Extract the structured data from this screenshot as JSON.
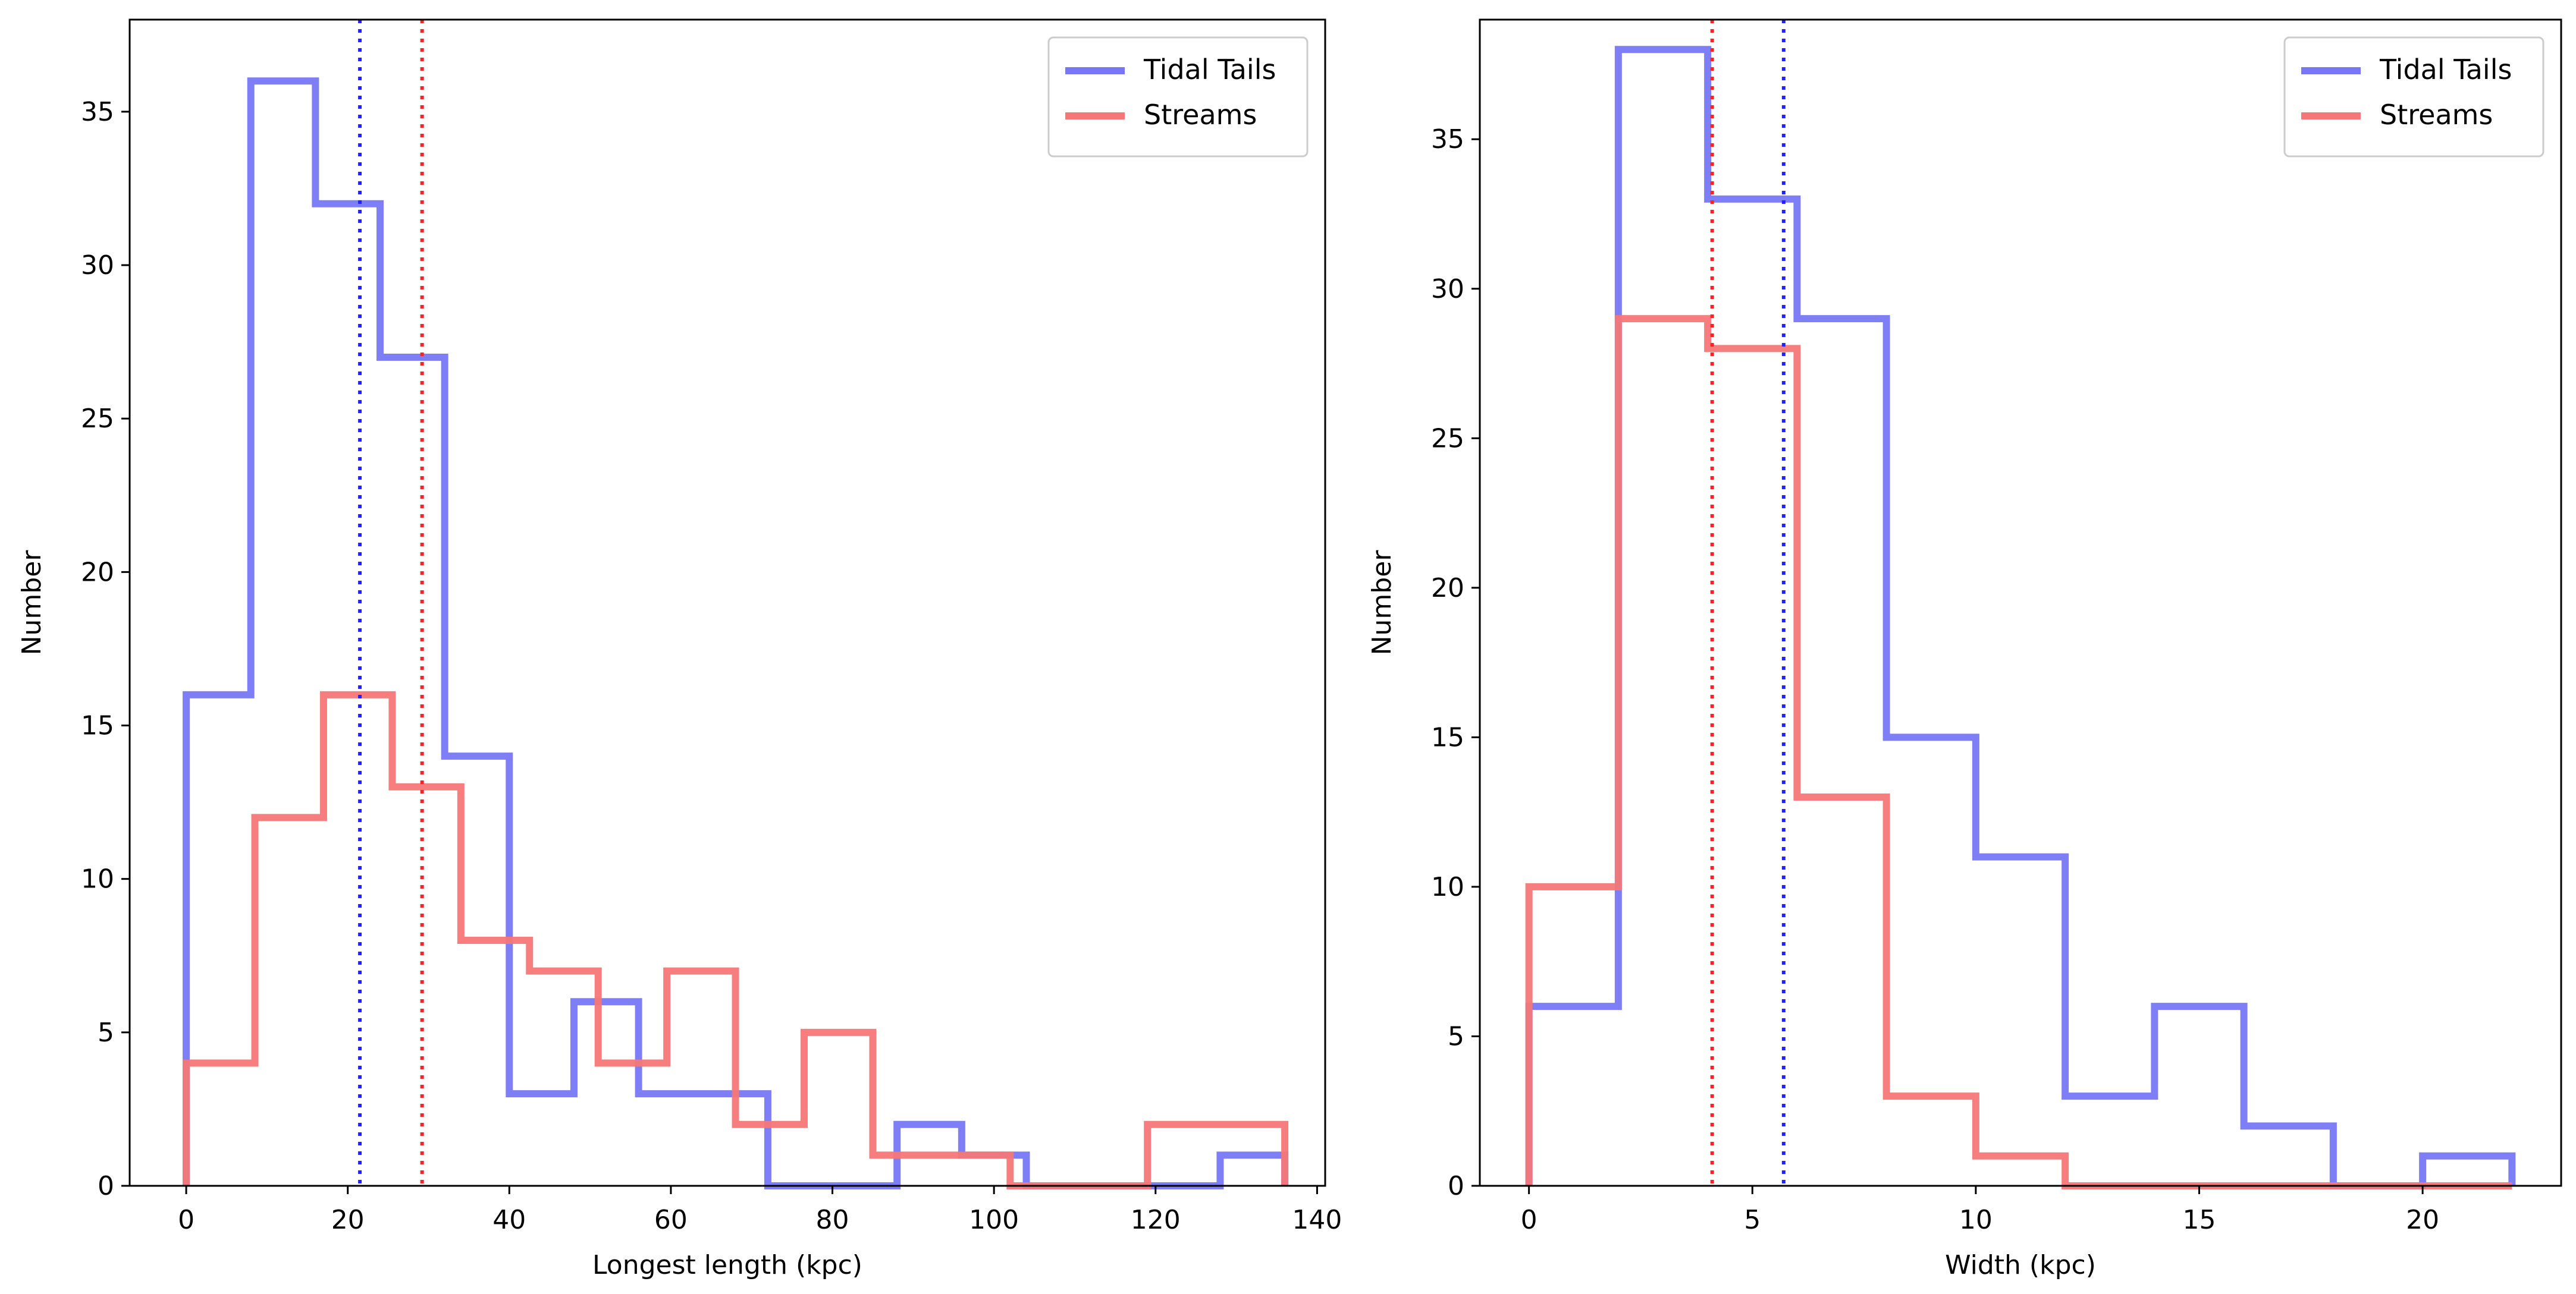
{
  "chart_data": [
    {
      "type": "histogram-step",
      "xlabel": "Longest length (kpc)",
      "ylabel": "Number",
      "xlim": [
        -7,
        141
      ],
      "ylim": [
        0,
        38
      ],
      "xticks": [
        0,
        20,
        40,
        60,
        80,
        100,
        120,
        140
      ],
      "yticks": [
        0,
        5,
        10,
        15,
        20,
        25,
        30,
        35
      ],
      "legend_position": "upper-right",
      "series": [
        {
          "name": "Tidal Tails",
          "color": "#7777f5",
          "bin_edges": [
            0,
            8,
            16,
            24,
            32,
            40,
            48,
            56,
            64,
            72,
            80,
            88,
            96,
            104,
            112,
            120,
            128,
            136
          ],
          "counts": [
            16,
            36,
            32,
            27,
            14,
            3,
            6,
            3,
            3,
            0,
            0,
            2,
            1,
            0,
            0,
            0,
            1
          ]
        },
        {
          "name": "Streams",
          "color": "#f57777",
          "bin_edges": [
            0,
            8.5,
            17,
            25.5,
            34,
            42.5,
            51,
            59.5,
            68,
            76.5,
            85,
            93.5,
            102,
            110.5,
            119,
            127.5,
            136
          ],
          "counts": [
            4,
            12,
            16,
            13,
            8,
            7,
            4,
            7,
            2,
            5,
            1,
            1,
            0,
            0,
            2,
            2
          ]
        }
      ],
      "vlines": [
        {
          "x": 21.5,
          "color": "#2222ff",
          "style": "dotted"
        },
        {
          "x": 29.2,
          "color": "#ff2222",
          "style": "dotted"
        }
      ]
    },
    {
      "type": "histogram-step",
      "xlabel": "Width (kpc)",
      "ylabel": "Number",
      "xlim": [
        -1.1,
        23.1
      ],
      "ylim": [
        0,
        39
      ],
      "xticks": [
        0,
        5,
        10,
        15,
        20
      ],
      "yticks": [
        0,
        5,
        10,
        15,
        20,
        25,
        30,
        35
      ],
      "legend_position": "upper-right",
      "series": [
        {
          "name": "Tidal Tails",
          "color": "#7777f5",
          "bin_edges": [
            0,
            2,
            4,
            6,
            8,
            10,
            12,
            14,
            16,
            18,
            20,
            22
          ],
          "counts": [
            6,
            38,
            33,
            29,
            15,
            11,
            3,
            6,
            2,
            0,
            1
          ]
        },
        {
          "name": "Streams",
          "color": "#f57777",
          "bin_edges": [
            0,
            2,
            4,
            6,
            8,
            10,
            12,
            14,
            16,
            18,
            20,
            22
          ],
          "counts": [
            10,
            29,
            28,
            13,
            3,
            1,
            0,
            0,
            0,
            0,
            0
          ]
        }
      ],
      "vlines": [
        {
          "x": 4.1,
          "color": "#ff2222",
          "style": "dotted"
        },
        {
          "x": 5.7,
          "color": "#2222ff",
          "style": "dotted"
        }
      ]
    }
  ]
}
